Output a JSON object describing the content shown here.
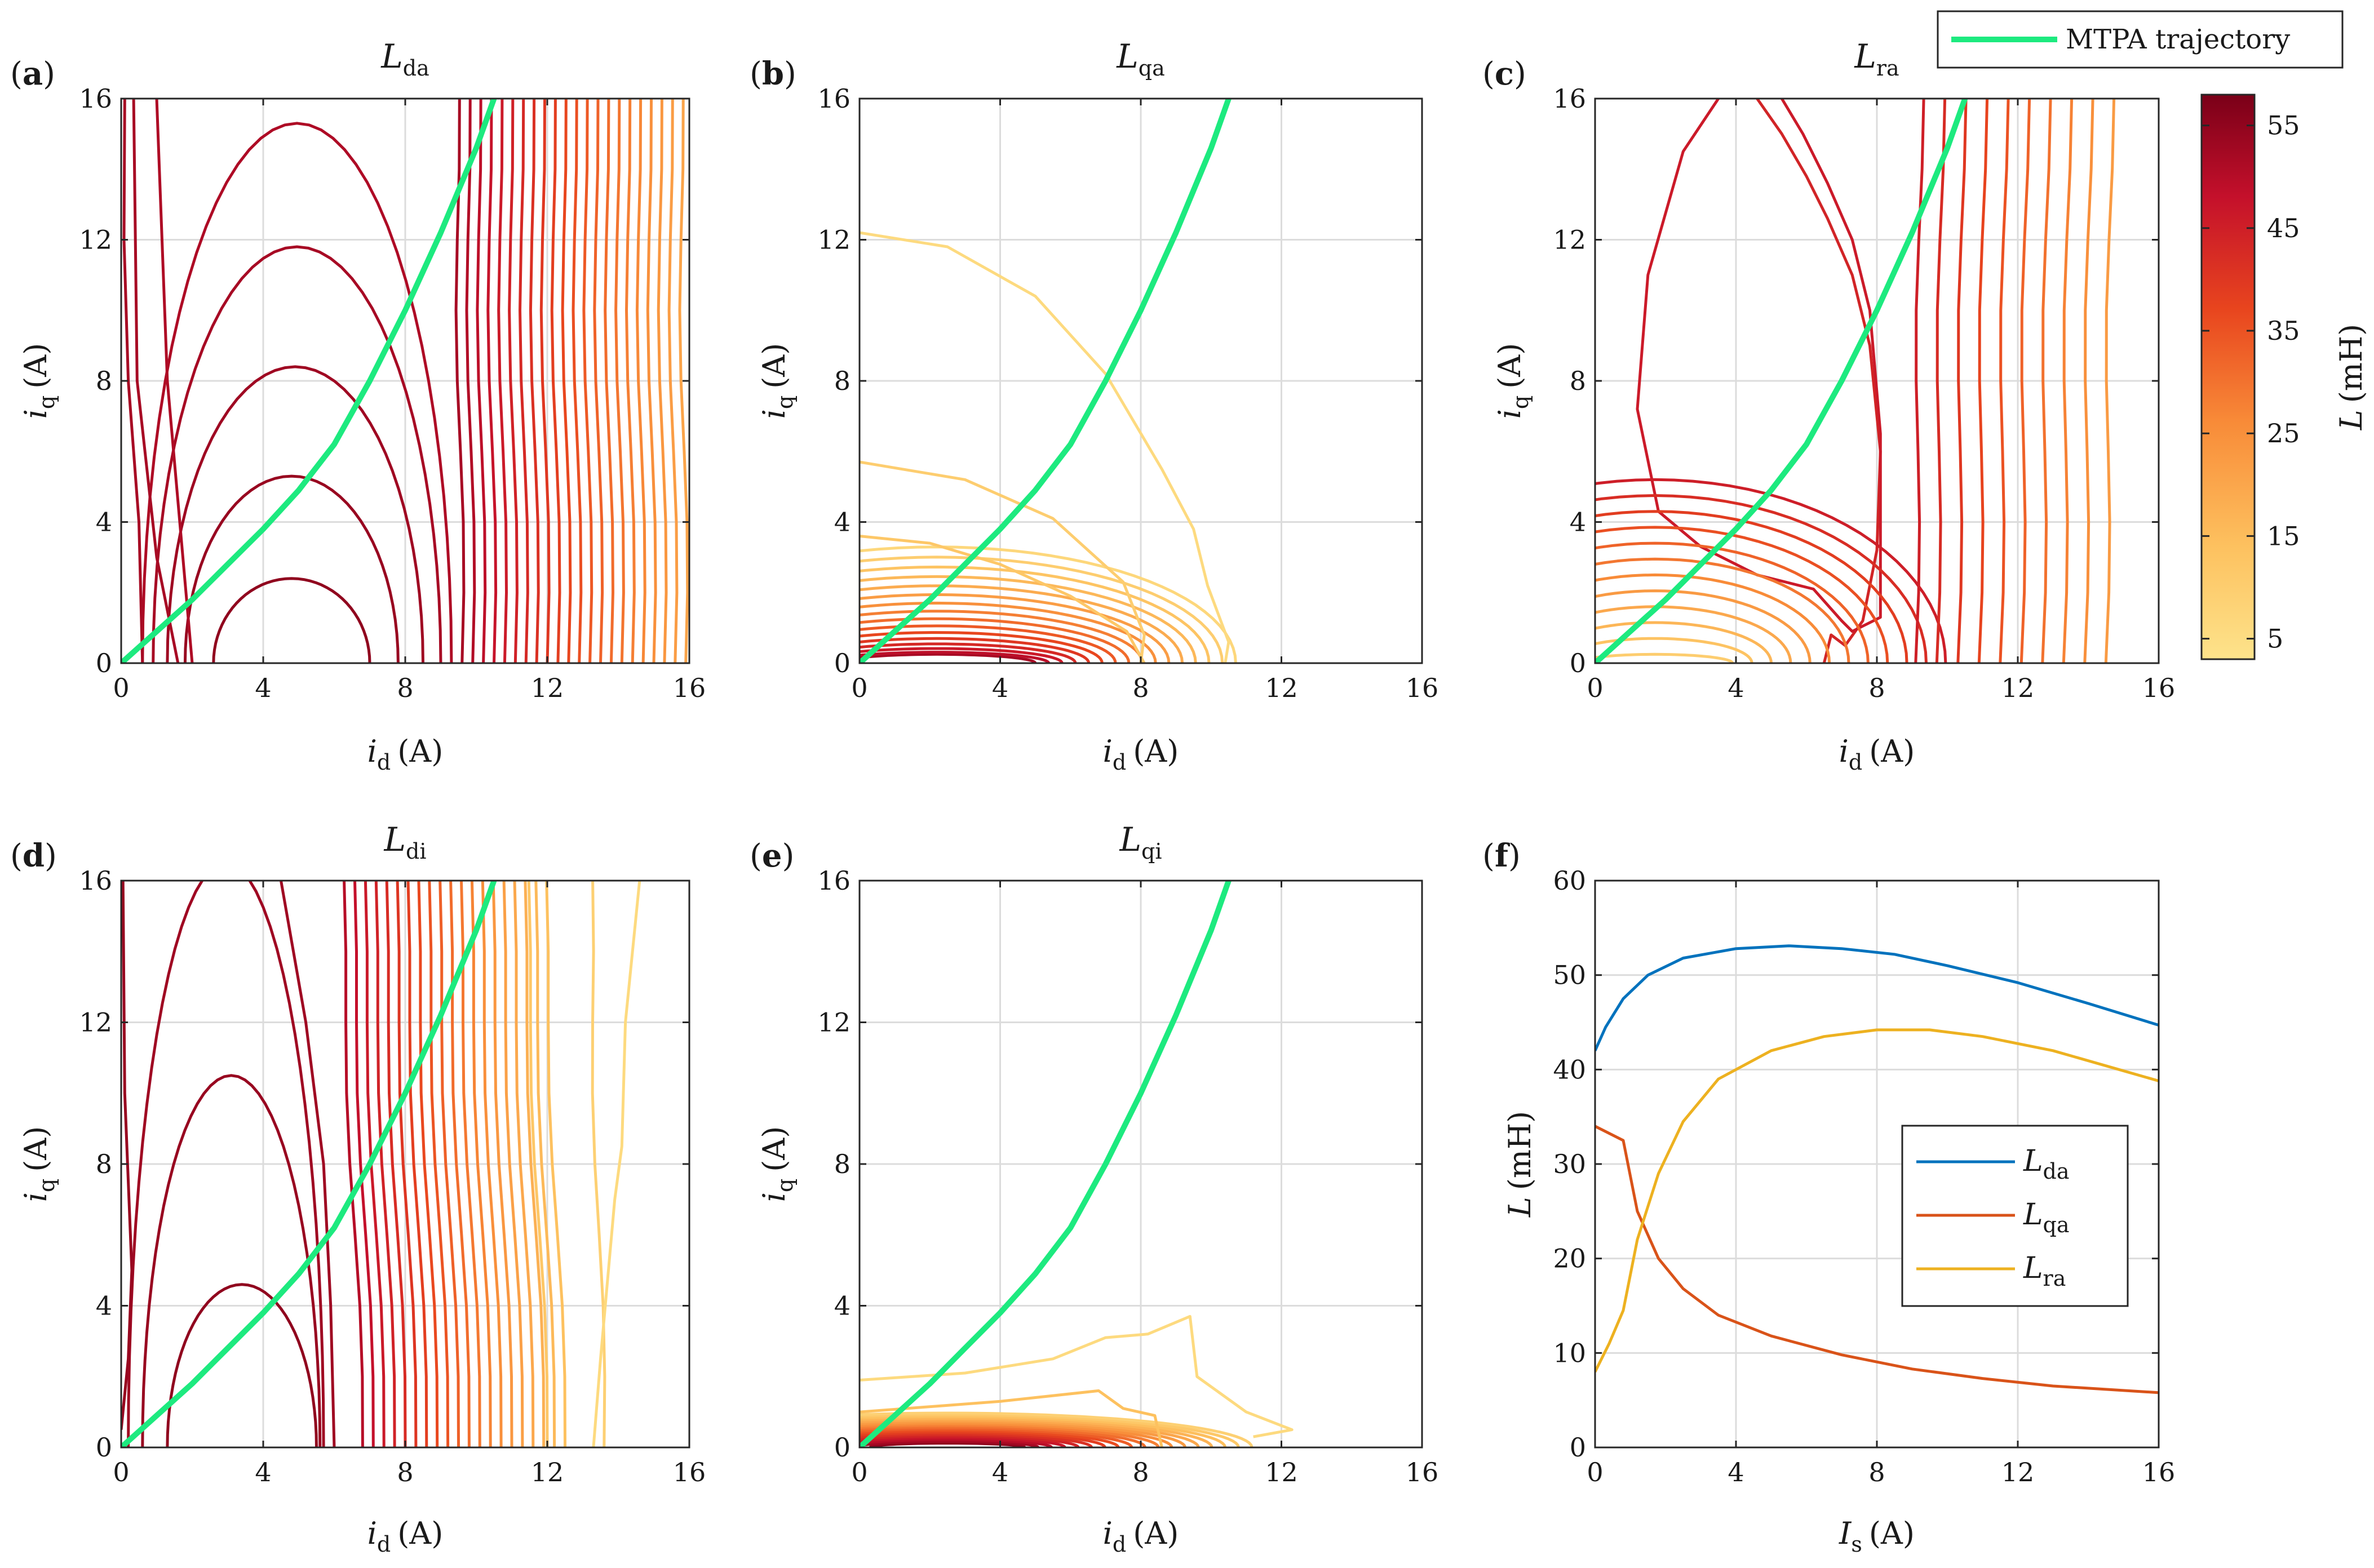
{
  "legend_top": {
    "label": "MTPA trajectory",
    "color": "#1dea7f"
  },
  "colorbar": {
    "label_italic": "L",
    "label_rest": "(mH)",
    "ticks": [
      "5",
      "15",
      "25",
      "35",
      "45",
      "55"
    ],
    "tick_values": [
      5,
      15,
      25,
      35,
      45,
      55
    ],
    "range": [
      3,
      58
    ],
    "colors": [
      "#fde38b",
      "#fdc15f",
      "#f88b38",
      "#e8451e",
      "#c4102b",
      "#7a0018"
    ]
  },
  "panels": {
    "a": {
      "letter": "a",
      "title_main": "L",
      "title_sub": "da"
    },
    "b": {
      "letter": "b",
      "title_main": "L",
      "title_sub": "qa"
    },
    "c": {
      "letter": "c",
      "title_main": "L",
      "title_sub": "ra"
    },
    "d": {
      "letter": "d",
      "title_main": "L",
      "title_sub": "di"
    },
    "e": {
      "letter": "e",
      "title_main": "L",
      "title_sub": "qi"
    },
    "f": {
      "letter": "f"
    }
  },
  "axes_text": {
    "xlabel_main": "i",
    "xlabel_sub": "d",
    "xlabel_unit": "(A)",
    "ylabel_main": "i",
    "ylabel_sub": "q",
    "ylabel_unit": "(A)",
    "ticks": [
      "0",
      "4",
      "8",
      "12",
      "16"
    ],
    "f_xlabel_main": "I",
    "f_xlabel_sub": "s",
    "f_xlabel_unit": "(A)",
    "f_ylabel_main": "L",
    "f_ylabel_unit": "(mH)",
    "f_yticks": [
      "0",
      "10",
      "20",
      "30",
      "40",
      "50",
      "60"
    ]
  },
  "chart_data": [
    {
      "panel": "a",
      "type": "contour",
      "title": "Lda",
      "xlabel": "id (A)",
      "ylabel": "iq (A)",
      "xlim": [
        0,
        16
      ],
      "ylim": [
        0,
        16
      ],
      "mtpa": [
        [
          0,
          0
        ],
        [
          1,
          0.9
        ],
        [
          2,
          1.8
        ],
        [
          3,
          2.8
        ],
        [
          4,
          3.8
        ],
        [
          5,
          4.9
        ],
        [
          6,
          6.2
        ],
        [
          7,
          8.0
        ],
        [
          8,
          10.0
        ],
        [
          9,
          12.2
        ],
        [
          10,
          14.6
        ],
        [
          10.5,
          16
        ]
      ]
    },
    {
      "panel": "b",
      "type": "contour",
      "title": "Lqa",
      "xlabel": "id (A)",
      "ylabel": "iq (A)",
      "xlim": [
        0,
        16
      ],
      "ylim": [
        0,
        16
      ],
      "mtpa": [
        [
          0,
          0
        ],
        [
          1,
          0.9
        ],
        [
          2,
          1.8
        ],
        [
          3,
          2.8
        ],
        [
          4,
          3.8
        ],
        [
          5,
          4.9
        ],
        [
          6,
          6.2
        ],
        [
          7,
          8.0
        ],
        [
          8,
          10.0
        ],
        [
          9,
          12.2
        ],
        [
          10,
          14.6
        ],
        [
          10.5,
          16
        ]
      ]
    },
    {
      "panel": "c",
      "type": "contour",
      "title": "Lra",
      "xlabel": "id (A)",
      "ylabel": "iq (A)",
      "xlim": [
        0,
        16
      ],
      "ylim": [
        0,
        16
      ],
      "mtpa": [
        [
          0,
          0
        ],
        [
          1,
          0.9
        ],
        [
          2,
          1.8
        ],
        [
          3,
          2.8
        ],
        [
          4,
          3.8
        ],
        [
          5,
          4.9
        ],
        [
          6,
          6.2
        ],
        [
          7,
          8.0
        ],
        [
          8,
          10.0
        ],
        [
          9,
          12.2
        ],
        [
          10,
          14.6
        ],
        [
          10.5,
          16
        ]
      ]
    },
    {
      "panel": "d",
      "type": "contour",
      "title": "Ldi",
      "xlabel": "id (A)",
      "ylabel": "iq (A)",
      "xlim": [
        0,
        16
      ],
      "ylim": [
        0,
        16
      ],
      "mtpa": [
        [
          0,
          0
        ],
        [
          1,
          0.9
        ],
        [
          2,
          1.8
        ],
        [
          3,
          2.8
        ],
        [
          4,
          3.8
        ],
        [
          5,
          4.9
        ],
        [
          6,
          6.2
        ],
        [
          7,
          8.0
        ],
        [
          8,
          10.0
        ],
        [
          9,
          12.2
        ],
        [
          10,
          14.6
        ],
        [
          10.5,
          16
        ]
      ]
    },
    {
      "panel": "e",
      "type": "contour",
      "title": "Lqi",
      "xlabel": "id (A)",
      "ylabel": "iq (A)",
      "xlim": [
        0,
        16
      ],
      "ylim": [
        0,
        16
      ],
      "mtpa": [
        [
          0,
          0
        ],
        [
          1,
          0.9
        ],
        [
          2,
          1.8
        ],
        [
          3,
          2.8
        ],
        [
          4,
          3.8
        ],
        [
          5,
          4.9
        ],
        [
          6,
          6.2
        ],
        [
          7,
          8.0
        ],
        [
          8,
          10.0
        ],
        [
          9,
          12.2
        ],
        [
          10,
          14.6
        ],
        [
          10.5,
          16
        ]
      ]
    },
    {
      "panel": "f",
      "type": "line",
      "xlabel": "Is (A)",
      "ylabel": "L (mH)",
      "xlim": [
        0,
        16
      ],
      "ylim": [
        0,
        60
      ],
      "series": [
        {
          "name": "Lda",
          "main": "L",
          "sub": "da",
          "color": "#0072bd",
          "points": [
            [
              0,
              42
            ],
            [
              0.3,
              44.5
            ],
            [
              0.8,
              47.5
            ],
            [
              1.5,
              50
            ],
            [
              2.5,
              51.8
            ],
            [
              4,
              52.8
            ],
            [
              5.5,
              53.1
            ],
            [
              7,
              52.8
            ],
            [
              8.5,
              52.2
            ],
            [
              10,
              51
            ],
            [
              12,
              49.2
            ],
            [
              14,
              47
            ],
            [
              16,
              44.7
            ]
          ]
        },
        {
          "name": "Lqa",
          "main": "L",
          "sub": "qa",
          "color": "#d95319",
          "points": [
            [
              0,
              34
            ],
            [
              0.8,
              32.5
            ],
            [
              1.2,
              25
            ],
            [
              1.8,
              20
            ],
            [
              2.5,
              16.8
            ],
            [
              3.5,
              14
            ],
            [
              5,
              11.8
            ],
            [
              7,
              9.8
            ],
            [
              9,
              8.3
            ],
            [
              11,
              7.3
            ],
            [
              13,
              6.5
            ],
            [
              16,
              5.8
            ]
          ]
        },
        {
          "name": "Lra",
          "main": "L",
          "sub": "ra",
          "color": "#edb120",
          "points": [
            [
              0,
              8
            ],
            [
              0.4,
              11
            ],
            [
              0.8,
              14.5
            ],
            [
              1.2,
              22
            ],
            [
              1.8,
              29
            ],
            [
              2.5,
              34.5
            ],
            [
              3.5,
              39
            ],
            [
              5,
              42
            ],
            [
              6.5,
              43.5
            ],
            [
              8,
              44.2
            ],
            [
              9.5,
              44.2
            ],
            [
              11,
              43.5
            ],
            [
              13,
              42
            ],
            [
              16,
              38.8
            ]
          ]
        }
      ]
    }
  ]
}
